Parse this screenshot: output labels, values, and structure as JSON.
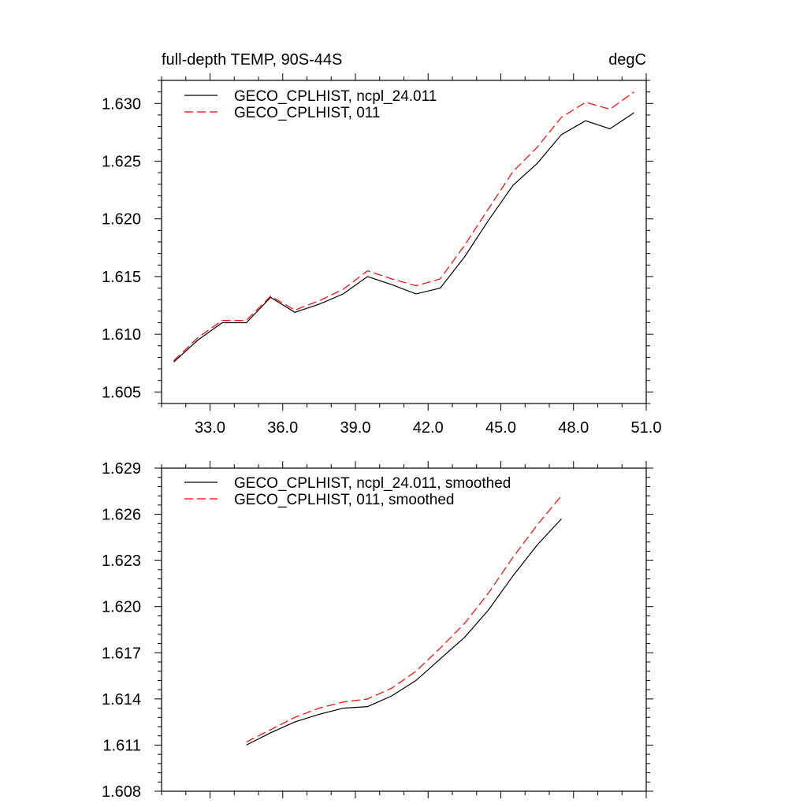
{
  "chart_data": [
    {
      "type": "line",
      "title_left": "full-depth TEMP, 90S-44S",
      "title_right": "degC",
      "xlim": [
        31.0,
        51.0
      ],
      "ylim": [
        1.604,
        1.632
      ],
      "xticks": [
        33.0,
        36.0,
        39.0,
        42.0,
        45.0,
        48.0,
        51.0
      ],
      "xtick_labels": [
        "33.0",
        "36.0",
        "39.0",
        "42.0",
        "45.0",
        "48.0",
        "51.0"
      ],
      "yticks": [
        1.605,
        1.61,
        1.615,
        1.62,
        1.625,
        1.63
      ],
      "ytick_labels": [
        "1.605",
        "1.610",
        "1.615",
        "1.620",
        "1.625",
        "1.630"
      ],
      "legend_position": "top-left",
      "x": [
        31.5,
        32.5,
        33.5,
        34.5,
        35.5,
        36.5,
        37.5,
        38.5,
        39.5,
        40.5,
        41.5,
        42.5,
        43.5,
        44.5,
        45.5,
        46.5,
        47.5,
        48.5,
        49.5,
        50.5
      ],
      "series": [
        {
          "name": "GECO_CPLHIST, ncpl_24.011",
          "color": "#000000",
          "style": "solid",
          "values": [
            1.6076,
            1.6095,
            1.611,
            1.611,
            1.6132,
            1.6119,
            1.6126,
            1.6135,
            1.615,
            1.6143,
            1.6135,
            1.614,
            1.6167,
            1.6199,
            1.6229,
            1.6248,
            1.6273,
            1.6285,
            1.6278,
            1.6292
          ]
        },
        {
          "name": "GECO_CPLHIST, 011",
          "color": "#ff0000",
          "style": "dashed",
          "values": [
            1.6077,
            1.6097,
            1.6112,
            1.6112,
            1.6133,
            1.6121,
            1.6129,
            1.6139,
            1.6155,
            1.6148,
            1.6142,
            1.6148,
            1.6177,
            1.6209,
            1.6241,
            1.6262,
            1.6288,
            1.6301,
            1.6295,
            1.631
          ]
        }
      ]
    },
    {
      "type": "line",
      "xlim": [
        31.0,
        51.0
      ],
      "ylim": [
        1.608,
        1.629
      ],
      "xticks": [
        33.0,
        36.0,
        39.0,
        42.0,
        45.0,
        48.0,
        51.0
      ],
      "yticks": [
        1.608,
        1.611,
        1.614,
        1.617,
        1.62,
        1.623,
        1.626,
        1.629
      ],
      "ytick_labels": [
        "1.608",
        "1.611",
        "1.614",
        "1.617",
        "1.620",
        "1.623",
        "1.626",
        "1.629"
      ],
      "legend_position": "top-left",
      "x": [
        34.5,
        35.5,
        36.5,
        37.5,
        38.5,
        39.5,
        40.5,
        41.5,
        42.5,
        43.5,
        44.5,
        45.5,
        46.5,
        47.5
      ],
      "series": [
        {
          "name": "GECO_CPLHIST, ncpl_24.011, smoothed",
          "color": "#000000",
          "style": "solid",
          "values": [
            1.611,
            1.6118,
            1.6125,
            1.613,
            1.6134,
            1.6135,
            1.6142,
            1.6152,
            1.6166,
            1.618,
            1.6198,
            1.622,
            1.624,
            1.6257
          ]
        },
        {
          "name": "GECO_CPLHIST, 011, smoothed",
          "color": "#ff0000",
          "style": "dashed",
          "values": [
            1.6112,
            1.612,
            1.6128,
            1.6134,
            1.6138,
            1.614,
            1.6147,
            1.6158,
            1.6173,
            1.6189,
            1.6209,
            1.6232,
            1.6253,
            1.6272
          ]
        }
      ]
    }
  ]
}
